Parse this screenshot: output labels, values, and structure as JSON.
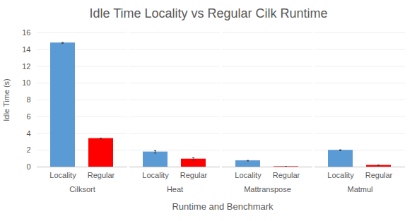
{
  "chart_data": {
    "type": "bar",
    "title": "Idle Time Locality vs Regular Cilk Runtime",
    "x_label": "Runtime and Benchmark",
    "y_label": "Idle Time (s)",
    "categories": [
      "Cilksort",
      "Heat",
      "Mattranspose",
      "Matmul"
    ],
    "series": [
      {
        "name": "Locality",
        "color": "#5b9bd5",
        "values": [
          14.8,
          1.8,
          0.75,
          2.0
        ],
        "errors": [
          0.05,
          0.15,
          0.03,
          0.05
        ]
      },
      {
        "name": "Regular",
        "color": "#ff0000",
        "values": [
          3.4,
          0.95,
          0.05,
          0.2
        ],
        "errors": [
          0.05,
          0.15,
          0.02,
          0.05
        ]
      }
    ],
    "ylim": [
      0,
      16
    ],
    "yticks": [
      0,
      2,
      4,
      6,
      8,
      10,
      12,
      14,
      16
    ],
    "grid": true
  }
}
